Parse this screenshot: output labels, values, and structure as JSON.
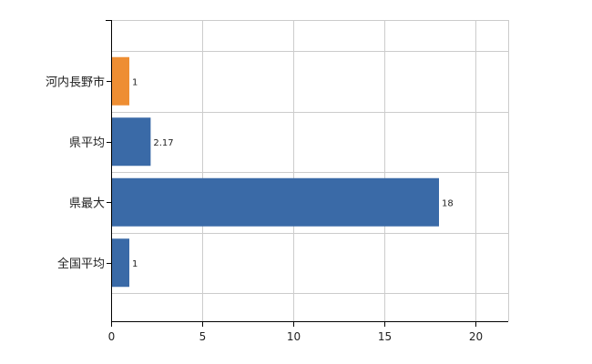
{
  "chart_data": {
    "type": "bar",
    "orientation": "horizontal",
    "categories": [
      "河内長野市",
      "県平均",
      "県最大",
      "全国平均"
    ],
    "values": [
      1,
      2.17,
      18,
      1
    ],
    "data_labels": [
      "1",
      "2.17",
      "18",
      "1"
    ],
    "bar_colors": [
      "#ee8e33",
      "#3a6aa7",
      "#3a6aa7",
      "#3a6aa7"
    ],
    "xlim": [
      0,
      21.8
    ],
    "xticks": [
      0,
      5,
      10,
      15,
      20
    ],
    "xtick_labels": [
      "0",
      "5",
      "10",
      "15",
      "20"
    ],
    "grid": true,
    "legend": "none"
  },
  "colors": {
    "highlight": "#ee8e33",
    "primary": "#3a6aa7",
    "grid": "#cccccc",
    "axis": "#000000"
  }
}
